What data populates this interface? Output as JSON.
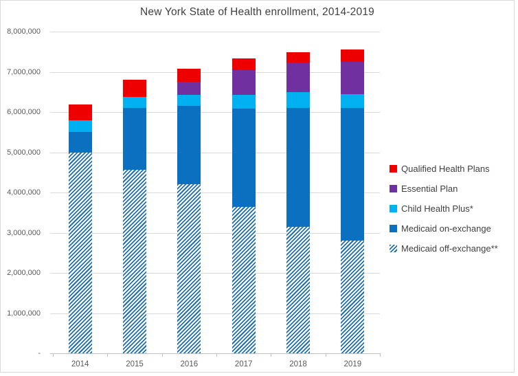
{
  "chart_data": {
    "type": "bar",
    "stacked": true,
    "title": "New York State of Health enrollment, 2014-2019",
    "categories": [
      "2014",
      "2015",
      "2016",
      "2017",
      "2018",
      "2019"
    ],
    "series": [
      {
        "name": "Medicaid off-exchange**",
        "color": "#1e6fae",
        "pattern": "diagonal-stripes",
        "values": [
          5000000,
          4560000,
          4200000,
          3640000,
          3140000,
          2810000
        ]
      },
      {
        "name": "Medicaid on-exchange",
        "color": "#0b70c0",
        "pattern": "solid",
        "values": [
          500000,
          1540000,
          1950000,
          2440000,
          2960000,
          3300000
        ]
      },
      {
        "name": "Child Health Plus*",
        "color": "#00b0f0",
        "pattern": "solid",
        "values": [
          300000,
          270000,
          270000,
          340000,
          400000,
          340000
        ]
      },
      {
        "name": "Essential Plan",
        "color": "#7030a0",
        "pattern": "solid",
        "values": [
          0,
          0,
          340000,
          630000,
          730000,
          800000
        ]
      },
      {
        "name": "Qualified Health Plans",
        "color": "#ee0000",
        "pattern": "solid",
        "values": [
          380000,
          430000,
          310000,
          290000,
          260000,
          310000
        ]
      }
    ],
    "legend": {
      "position": "right",
      "order_top_to_bottom": [
        "Qualified Health Plans",
        "Essential Plan",
        "Child Health Plus*",
        "Medicaid on-exchange",
        "Medicaid off-exchange**"
      ]
    },
    "y_axis": {
      "min": 0,
      "max": 8000000,
      "tick_interval": 1000000,
      "tick_labels_top_to_bottom": [
        "8,000,000",
        "7,000,000",
        "6,000,000",
        "5,000,000",
        "4,000,000",
        "3,000,000",
        "2,000,000",
        "1,000,000",
        "-"
      ]
    },
    "grid": true,
    "colors": {
      "gridline": "#d9d9d9",
      "axis_line": "#bfbfbf",
      "axis_text": "#595959",
      "title_text": "#3f3f3f",
      "background": "#ffffff"
    }
  }
}
